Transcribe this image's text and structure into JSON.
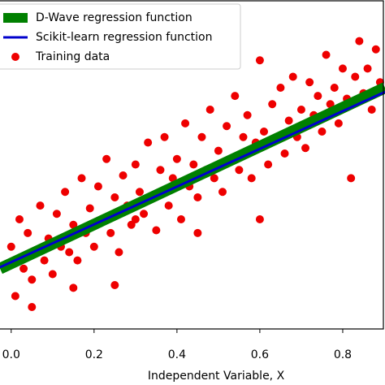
{
  "chart_data": {
    "type": "scatter",
    "xlabel": "Independent Variable, X",
    "xlim": [
      -0.027,
      0.902
    ],
    "ylim": [
      0,
      1.2
    ],
    "xticks": [
      {
        "value": 0,
        "label": "0.0"
      },
      0.2,
      0.4,
      0.6,
      0.8
    ],
    "legend": "upper left",
    "series": [
      {
        "name": "D-Wave regression function",
        "type": "line",
        "color": "#008000",
        "x": [
          -0.027,
          0.902
        ],
        "values": [
          0.22,
          0.88
        ]
      },
      {
        "name": "Scikit-learn regression function",
        "type": "line",
        "color": "#0000cc",
        "x": [
          -0.027,
          0.902
        ],
        "values": [
          0.225,
          0.865
        ]
      },
      {
        "name": "Training data",
        "type": "scatter",
        "color": "#ee0000",
        "x": [
          0.0,
          0.01,
          0.02,
          0.03,
          0.04,
          0.05,
          0.06,
          0.07,
          0.08,
          0.09,
          0.1,
          0.11,
          0.12,
          0.13,
          0.14,
          0.15,
          0.16,
          0.17,
          0.18,
          0.19,
          0.2,
          0.21,
          0.22,
          0.23,
          0.24,
          0.25,
          0.26,
          0.27,
          0.28,
          0.29,
          0.3,
          0.31,
          0.32,
          0.33,
          0.34,
          0.35,
          0.36,
          0.37,
          0.38,
          0.39,
          0.4,
          0.41,
          0.42,
          0.43,
          0.44,
          0.45,
          0.46,
          0.47,
          0.48,
          0.49,
          0.5,
          0.51,
          0.52,
          0.53,
          0.54,
          0.55,
          0.56,
          0.57,
          0.58,
          0.59,
          0.6,
          0.61,
          0.62,
          0.63,
          0.64,
          0.65,
          0.66,
          0.67,
          0.68,
          0.69,
          0.7,
          0.71,
          0.72,
          0.73,
          0.74,
          0.75,
          0.76,
          0.77,
          0.78,
          0.79,
          0.8,
          0.81,
          0.82,
          0.83,
          0.84,
          0.85,
          0.86,
          0.87,
          0.88,
          0.89,
          0.05,
          0.3,
          0.45,
          0.6,
          0.15,
          0.25
        ],
        "values": [
          0.3,
          0.12,
          0.4,
          0.22,
          0.35,
          0.18,
          0.28,
          0.45,
          0.25,
          0.33,
          0.2,
          0.42,
          0.3,
          0.5,
          0.28,
          0.38,
          0.25,
          0.55,
          0.35,
          0.44,
          0.3,
          0.52,
          0.4,
          0.62,
          0.35,
          0.48,
          0.28,
          0.56,
          0.45,
          0.38,
          0.6,
          0.5,
          0.42,
          0.68,
          0.48,
          0.36,
          0.58,
          0.7,
          0.45,
          0.55,
          0.62,
          0.4,
          0.75,
          0.52,
          0.6,
          0.48,
          0.7,
          0.58,
          0.8,
          0.55,
          0.65,
          0.5,
          0.74,
          0.62,
          0.85,
          0.58,
          0.7,
          0.78,
          0.55,
          0.68,
          0.98,
          0.72,
          0.6,
          0.82,
          0.7,
          0.88,
          0.64,
          0.76,
          0.92,
          0.7,
          0.8,
          0.66,
          0.9,
          0.78,
          0.85,
          0.72,
          1.0,
          0.82,
          0.88,
          0.75,
          0.95,
          0.84,
          0.55,
          0.92,
          1.05,
          0.86,
          0.95,
          0.8,
          1.02,
          0.9,
          0.08,
          0.4,
          0.35,
          0.4,
          0.15,
          0.16
        ]
      }
    ]
  }
}
